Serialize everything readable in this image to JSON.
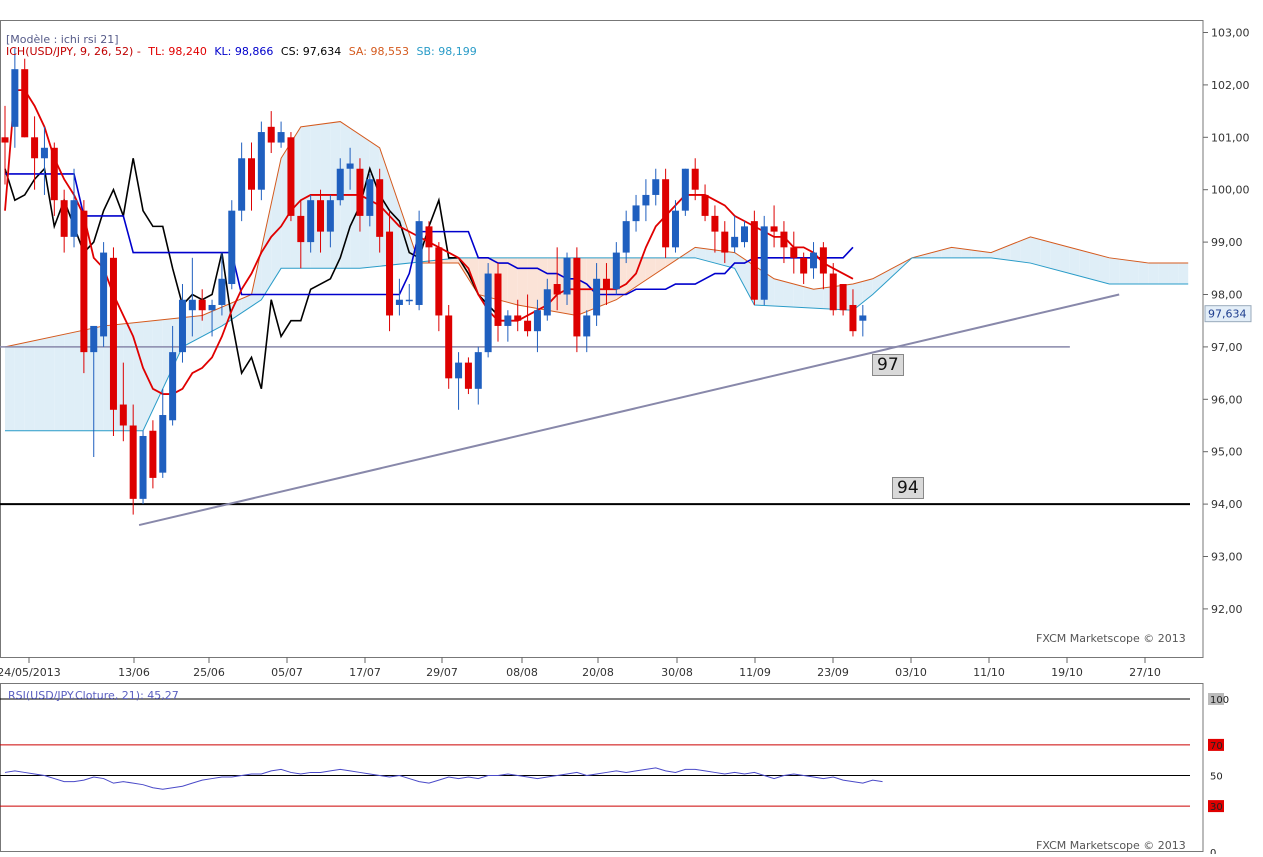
{
  "header": {
    "model": "[Modèle : ichi rsi 21]",
    "indicator_name": "ICH(USD/JPY, 9, 26, 52) -",
    "tl": "TL: 98,240",
    "kl": "KL: 98,866",
    "cs": "CS: 97,634",
    "sa": "SA: 98,553",
    "sb": "SB: 98,199"
  },
  "rsi_header": "RSI(USD/JPY.Cloture, 21): 45,27",
  "copyright_main": "FXCM Marketscope © 2013",
  "copyright_rsi": "FXCM Marketscope © 2013",
  "annotations": {
    "level_97": "97",
    "level_94": "94"
  },
  "colors": {
    "bull": "#1f5fbf",
    "bear": "#dd0000",
    "tenkan": "#e00000",
    "kijun": "#0000cc",
    "chikou": "#000000",
    "span_a": "#d45a1e",
    "span_b": "#2a9cc8",
    "cloud_bull": "#dfeef7",
    "cloud_bear": "#fbe3d7",
    "trend": "#8888aa",
    "rsi": "#4a4ac8"
  },
  "chart_data": [
    {
      "type": "candlestick",
      "title": "ICH(USD/JPY, 9, 26, 52)",
      "x_ticks": [
        "24/05/2013",
        "13/06",
        "25/06",
        "05/07",
        "17/07",
        "29/07",
        "08/08",
        "20/08",
        "30/08",
        "11/09",
        "23/09",
        "03/10",
        "11/10",
        "19/10",
        "27/10"
      ],
      "y_ticks": [
        "103,00",
        "102,00",
        "101,00",
        "100,00",
        "99,00",
        "98,00",
        "97,00",
        "96,00",
        "95,00",
        "94,00",
        "93,00",
        "92,00"
      ],
      "ylim": [
        91.3,
        103.2
      ],
      "last_price_label": "97,634",
      "candles": [
        {
          "o": 101.0,
          "h": 101.6,
          "l": 100.1,
          "c": 100.9
        },
        {
          "o": 101.2,
          "h": 102.7,
          "l": 100.8,
          "c": 102.3
        },
        {
          "o": 102.3,
          "h": 102.5,
          "l": 101.0,
          "c": 101.0
        },
        {
          "o": 101.0,
          "h": 101.4,
          "l": 100.0,
          "c": 100.6
        },
        {
          "o": 100.6,
          "h": 101.2,
          "l": 99.9,
          "c": 100.8
        },
        {
          "o": 100.8,
          "h": 100.9,
          "l": 99.5,
          "c": 99.8
        },
        {
          "o": 99.8,
          "h": 100.0,
          "l": 98.8,
          "c": 99.1
        },
        {
          "o": 99.1,
          "h": 100.4,
          "l": 98.9,
          "c": 99.8
        },
        {
          "o": 99.6,
          "h": 99.8,
          "l": 96.5,
          "c": 96.9
        },
        {
          "o": 96.9,
          "h": 97.4,
          "l": 94.9,
          "c": 97.4
        },
        {
          "o": 97.2,
          "h": 99.0,
          "l": 97.0,
          "c": 98.8
        },
        {
          "o": 98.7,
          "h": 98.9,
          "l": 95.3,
          "c": 95.8
        },
        {
          "o": 95.9,
          "h": 96.7,
          "l": 95.2,
          "c": 95.5
        },
        {
          "o": 95.5,
          "h": 95.9,
          "l": 93.8,
          "c": 94.1
        },
        {
          "o": 94.1,
          "h": 95.4,
          "l": 94.0,
          "c": 95.3
        },
        {
          "o": 95.4,
          "h": 95.6,
          "l": 94.3,
          "c": 94.5
        },
        {
          "o": 94.6,
          "h": 96.2,
          "l": 94.5,
          "c": 95.7
        },
        {
          "o": 95.6,
          "h": 97.4,
          "l": 95.5,
          "c": 96.9
        },
        {
          "o": 96.9,
          "h": 98.2,
          "l": 96.7,
          "c": 97.9
        },
        {
          "o": 97.7,
          "h": 98.7,
          "l": 97.2,
          "c": 97.9
        },
        {
          "o": 97.9,
          "h": 98.1,
          "l": 97.5,
          "c": 97.7
        },
        {
          "o": 97.7,
          "h": 97.9,
          "l": 97.2,
          "c": 97.8
        },
        {
          "o": 97.8,
          "h": 98.8,
          "l": 97.6,
          "c": 98.3
        },
        {
          "o": 98.2,
          "h": 99.8,
          "l": 98.1,
          "c": 99.6
        },
        {
          "o": 99.6,
          "h": 100.9,
          "l": 99.4,
          "c": 100.6
        },
        {
          "o": 100.6,
          "h": 100.9,
          "l": 99.6,
          "c": 100.0
        },
        {
          "o": 100.0,
          "h": 101.3,
          "l": 99.8,
          "c": 101.1
        },
        {
          "o": 101.2,
          "h": 101.5,
          "l": 100.7,
          "c": 100.9
        },
        {
          "o": 100.9,
          "h": 101.3,
          "l": 100.8,
          "c": 101.1
        },
        {
          "o": 101.0,
          "h": 101.1,
          "l": 99.4,
          "c": 99.5
        },
        {
          "o": 99.5,
          "h": 99.8,
          "l": 98.5,
          "c": 99.0
        },
        {
          "o": 99.0,
          "h": 99.9,
          "l": 98.8,
          "c": 99.8
        },
        {
          "o": 99.8,
          "h": 100.0,
          "l": 98.8,
          "c": 99.2
        },
        {
          "o": 99.2,
          "h": 99.9,
          "l": 98.9,
          "c": 99.8
        },
        {
          "o": 99.8,
          "h": 100.6,
          "l": 99.7,
          "c": 100.4
        },
        {
          "o": 100.4,
          "h": 100.8,
          "l": 100.0,
          "c": 100.5
        },
        {
          "o": 100.4,
          "h": 100.6,
          "l": 99.2,
          "c": 99.5
        },
        {
          "o": 99.5,
          "h": 100.3,
          "l": 99.3,
          "c": 100.2
        },
        {
          "o": 100.2,
          "h": 100.4,
          "l": 98.8,
          "c": 99.1
        },
        {
          "o": 99.2,
          "h": 99.6,
          "l": 97.3,
          "c": 97.6
        },
        {
          "o": 97.8,
          "h": 98.3,
          "l": 97.6,
          "c": 97.9
        },
        {
          "o": 97.9,
          "h": 98.2,
          "l": 97.8,
          "c": 97.9
        },
        {
          "o": 97.8,
          "h": 99.6,
          "l": 97.7,
          "c": 99.4
        },
        {
          "o": 99.3,
          "h": 99.4,
          "l": 98.6,
          "c": 98.9
        },
        {
          "o": 98.9,
          "h": 99.0,
          "l": 97.3,
          "c": 97.6
        },
        {
          "o": 97.6,
          "h": 97.8,
          "l": 96.2,
          "c": 96.4
        },
        {
          "o": 96.4,
          "h": 96.9,
          "l": 95.8,
          "c": 96.7
        },
        {
          "o": 96.7,
          "h": 96.8,
          "l": 96.1,
          "c": 96.2
        },
        {
          "o": 96.2,
          "h": 97.0,
          "l": 95.9,
          "c": 96.9
        },
        {
          "o": 96.9,
          "h": 98.6,
          "l": 96.8,
          "c": 98.4
        },
        {
          "o": 98.4,
          "h": 98.6,
          "l": 97.1,
          "c": 97.4
        },
        {
          "o": 97.4,
          "h": 97.7,
          "l": 97.1,
          "c": 97.6
        },
        {
          "o": 97.6,
          "h": 97.9,
          "l": 97.3,
          "c": 97.5
        },
        {
          "o": 97.5,
          "h": 98.0,
          "l": 97.2,
          "c": 97.3
        },
        {
          "o": 97.3,
          "h": 97.9,
          "l": 96.9,
          "c": 97.7
        },
        {
          "o": 97.6,
          "h": 98.3,
          "l": 97.5,
          "c": 98.1
        },
        {
          "o": 98.2,
          "h": 98.9,
          "l": 97.7,
          "c": 98.0
        },
        {
          "o": 98.0,
          "h": 98.8,
          "l": 97.8,
          "c": 98.7
        },
        {
          "o": 98.7,
          "h": 98.9,
          "l": 96.9,
          "c": 97.2
        },
        {
          "o": 97.2,
          "h": 97.7,
          "l": 96.9,
          "c": 97.6
        },
        {
          "o": 97.6,
          "h": 98.6,
          "l": 97.4,
          "c": 98.3
        },
        {
          "o": 98.3,
          "h": 98.6,
          "l": 97.8,
          "c": 98.1
        },
        {
          "o": 98.1,
          "h": 99.0,
          "l": 98.0,
          "c": 98.8
        },
        {
          "o": 98.8,
          "h": 99.6,
          "l": 98.6,
          "c": 99.4
        },
        {
          "o": 99.4,
          "h": 99.9,
          "l": 99.2,
          "c": 99.7
        },
        {
          "o": 99.7,
          "h": 100.2,
          "l": 99.4,
          "c": 99.9
        },
        {
          "o": 99.9,
          "h": 100.4,
          "l": 99.7,
          "c": 100.2
        },
        {
          "o": 100.2,
          "h": 100.4,
          "l": 98.7,
          "c": 98.9
        },
        {
          "o": 98.9,
          "h": 99.8,
          "l": 98.8,
          "c": 99.6
        },
        {
          "o": 99.6,
          "h": 100.4,
          "l": 99.5,
          "c": 100.4
        },
        {
          "o": 100.4,
          "h": 100.6,
          "l": 99.8,
          "c": 100.0
        },
        {
          "o": 99.9,
          "h": 100.1,
          "l": 99.4,
          "c": 99.5
        },
        {
          "o": 99.5,
          "h": 99.7,
          "l": 98.8,
          "c": 99.2
        },
        {
          "o": 99.2,
          "h": 99.4,
          "l": 98.6,
          "c": 98.8
        },
        {
          "o": 98.9,
          "h": 99.5,
          "l": 98.8,
          "c": 99.1
        },
        {
          "o": 99.0,
          "h": 99.4,
          "l": 98.9,
          "c": 99.3
        },
        {
          "o": 99.4,
          "h": 99.6,
          "l": 97.8,
          "c": 97.9
        },
        {
          "o": 97.9,
          "h": 99.5,
          "l": 97.8,
          "c": 99.3
        },
        {
          "o": 99.3,
          "h": 99.7,
          "l": 98.9,
          "c": 99.2
        },
        {
          "o": 99.2,
          "h": 99.4,
          "l": 98.6,
          "c": 98.9
        },
        {
          "o": 98.9,
          "h": 99.2,
          "l": 98.4,
          "c": 98.7
        },
        {
          "o": 98.7,
          "h": 98.8,
          "l": 98.2,
          "c": 98.4
        },
        {
          "o": 98.5,
          "h": 99.0,
          "l": 98.3,
          "c": 98.8
        },
        {
          "o": 98.9,
          "h": 99.0,
          "l": 98.1,
          "c": 98.4
        },
        {
          "o": 98.4,
          "h": 98.6,
          "l": 97.6,
          "c": 97.7
        },
        {
          "o": 98.2,
          "h": 98.2,
          "l": 97.6,
          "c": 97.7
        },
        {
          "o": 97.8,
          "h": 98.1,
          "l": 97.2,
          "c": 97.3
        },
        {
          "o": 97.5,
          "h": 97.8,
          "l": 97.2,
          "c": 97.6
        }
      ],
      "tenkan": [
        99.6,
        101.9,
        101.9,
        101.6,
        101.2,
        100.6,
        100.2,
        99.9,
        99.5,
        98.7,
        98.5,
        98.0,
        97.6,
        97.2,
        96.6,
        96.2,
        96.1,
        96.1,
        96.2,
        96.5,
        96.6,
        96.8,
        97.2,
        97.7,
        98.1,
        98.4,
        98.8,
        99.1,
        99.3,
        99.6,
        99.8,
        99.9,
        99.9,
        99.9,
        99.9,
        99.9,
        99.9,
        99.8,
        99.7,
        99.5,
        99.3,
        99.2,
        99.1,
        99.0,
        98.9,
        98.8,
        98.7,
        98.5,
        98.0,
        97.7,
        97.5,
        97.5,
        97.5,
        97.6,
        97.7,
        97.8,
        98.0,
        98.1,
        98.1,
        98.1,
        98.1,
        98.1,
        98.1,
        98.2,
        98.4,
        98.9,
        99.3,
        99.5,
        99.7,
        99.9,
        99.9,
        99.9,
        99.8,
        99.7,
        99.5,
        99.4,
        99.3,
        99.2,
        99.1,
        99.1,
        98.9,
        98.9,
        98.8,
        98.6,
        98.5,
        98.4,
        98.3
      ],
      "kijun": [
        100.3,
        100.3,
        100.3,
        100.3,
        100.3,
        100.3,
        100.3,
        100.3,
        99.5,
        99.5,
        99.5,
        99.5,
        99.5,
        98.8,
        98.8,
        98.8,
        98.8,
        98.8,
        98.8,
        98.8,
        98.8,
        98.8,
        98.8,
        98.8,
        98.0,
        98.0,
        98.0,
        98.0,
        98.0,
        98.0,
        98.0,
        98.0,
        98.0,
        98.0,
        98.0,
        98.0,
        98.0,
        98.0,
        98.0,
        98.0,
        98.0,
        98.4,
        99.2,
        99.2,
        99.2,
        99.2,
        99.2,
        99.2,
        98.7,
        98.7,
        98.6,
        98.6,
        98.5,
        98.5,
        98.5,
        98.4,
        98.4,
        98.3,
        98.3,
        98.2,
        98.0,
        98.0,
        98.0,
        98.0,
        98.1,
        98.1,
        98.1,
        98.1,
        98.2,
        98.2,
        98.2,
        98.3,
        98.4,
        98.4,
        98.6,
        98.6,
        98.7,
        98.7,
        98.7,
        98.7,
        98.7,
        98.7,
        98.7,
        98.7,
        98.7,
        98.7,
        98.9
      ],
      "chikou": [
        100.4,
        99.8,
        99.9,
        100.2,
        100.4,
        99.3,
        99.8,
        99.3,
        98.8,
        99.0,
        99.6,
        100.0,
        99.5,
        100.6,
        99.6,
        99.3,
        99.3,
        98.5,
        97.8,
        98.0,
        97.9,
        98.0,
        98.8,
        97.5,
        96.5,
        96.8,
        96.2,
        97.9,
        97.2,
        97.5,
        97.5,
        98.1,
        98.2,
        98.3,
        98.7,
        99.3,
        99.7,
        100.4,
        99.9,
        99.6,
        99.4,
        98.8,
        98.7,
        99.3,
        99.8,
        98.7,
        98.7,
        98.4,
        98.0,
        97.8,
        97.6
      ],
      "span_a_path": [
        [
          0,
          97.0
        ],
        [
          10,
          97.4
        ],
        [
          20,
          97.6
        ],
        [
          25,
          98.0
        ],
        [
          28,
          100.6
        ],
        [
          30,
          101.2
        ],
        [
          34,
          101.3
        ],
        [
          38,
          100.8
        ],
        [
          42,
          98.6
        ],
        [
          46,
          98.6
        ],
        [
          48,
          98.0
        ],
        [
          52,
          97.8
        ],
        [
          58,
          97.6
        ],
        [
          62,
          97.9
        ],
        [
          70,
          98.9
        ],
        [
          74,
          98.8
        ],
        [
          78,
          98.3
        ],
        [
          82,
          98.1
        ],
        [
          86,
          98.2
        ],
        [
          88,
          98.3
        ],
        [
          92,
          98.7
        ],
        [
          96,
          98.9
        ],
        [
          100,
          98.8
        ],
        [
          104,
          99.1
        ],
        [
          108,
          98.9
        ],
        [
          112,
          98.7
        ],
        [
          116,
          98.6
        ],
        [
          120,
          98.6
        ]
      ],
      "span_b_path": [
        [
          0,
          95.4
        ],
        [
          14,
          95.4
        ],
        [
          18,
          97.0
        ],
        [
          22,
          97.4
        ],
        [
          26,
          97.9
        ],
        [
          28,
          98.5
        ],
        [
          36,
          98.5
        ],
        [
          46,
          98.7
        ],
        [
          52,
          98.7
        ],
        [
          58,
          98.7
        ],
        [
          62,
          98.7
        ],
        [
          70,
          98.7
        ],
        [
          74,
          98.5
        ],
        [
          76,
          97.8
        ],
        [
          86,
          97.7
        ],
        [
          88,
          98.0
        ],
        [
          92,
          98.7
        ],
        [
          96,
          98.7
        ],
        [
          100,
          98.7
        ],
        [
          104,
          98.6
        ],
        [
          108,
          98.4
        ],
        [
          112,
          98.2
        ],
        [
          116,
          98.2
        ],
        [
          120,
          98.2
        ]
      ],
      "support_levels": [
        97.0,
        94.0
      ],
      "trendline": [
        [
          13.6,
          93.6
        ],
        [
          113,
          98.0
        ]
      ]
    },
    {
      "type": "line",
      "title": "RSI(USD/JPY.Cloture, 21): 45,27",
      "y_ticks": [
        "100",
        "70",
        "50",
        "30",
        "0"
      ],
      "ylim": [
        0,
        100
      ],
      "levels": [
        100,
        70,
        50,
        30
      ],
      "values": [
        52,
        53,
        52,
        51,
        50,
        48,
        46,
        46,
        47,
        49,
        48,
        45,
        46,
        45,
        44,
        42,
        41,
        42,
        43,
        45,
        47,
        48,
        49,
        49,
        50,
        51,
        51,
        53,
        54,
        52,
        51,
        52,
        52,
        53,
        54,
        53,
        52,
        51,
        50,
        49,
        50,
        48,
        46,
        45,
        47,
        49,
        48,
        49,
        48,
        50,
        50,
        51,
        50,
        49,
        48,
        49,
        50,
        51,
        52,
        50,
        51,
        52,
        53,
        52,
        53,
        54,
        55,
        53,
        52,
        54,
        54,
        53,
        52,
        51,
        52,
        51,
        52,
        50,
        48,
        50,
        51,
        50,
        49,
        48,
        49,
        47,
        46,
        45,
        47,
        46
      ]
    }
  ]
}
